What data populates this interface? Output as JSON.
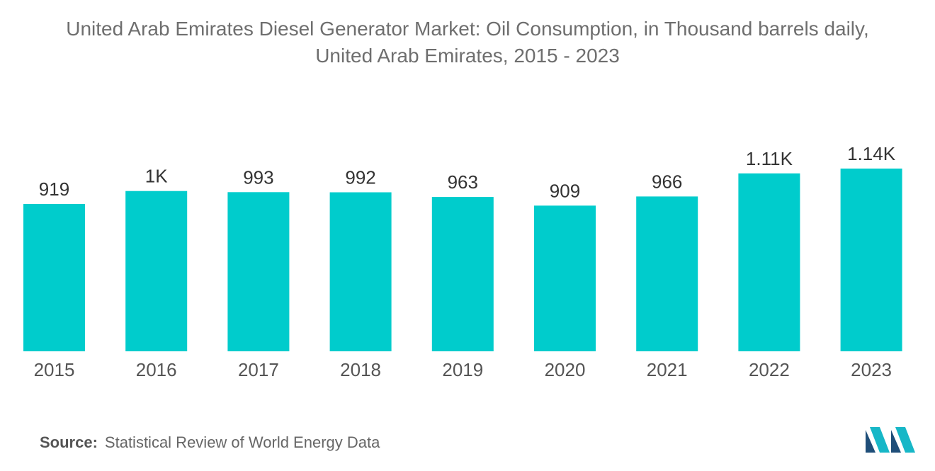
{
  "title": {
    "line1": "United Arab Emirates Diesel Generator Market: Oil Consumption, in Thousand barrels daily,",
    "line2": "United Arab Emirates, 2015 - 2023"
  },
  "chart_data": {
    "type": "bar",
    "title": "United Arab Emirates Diesel Generator Market: Oil Consumption, in Thousand barrels daily, United Arab Emirates, 2015 - 2023",
    "categories": [
      "2015",
      "2016",
      "2017",
      "2018",
      "2019",
      "2020",
      "2021",
      "2022",
      "2023"
    ],
    "values": [
      919,
      1000,
      993,
      992,
      963,
      909,
      966,
      1110,
      1140
    ],
    "data_labels": [
      "919",
      "1K",
      "993",
      "992",
      "963",
      "909",
      "966",
      "1.11K",
      "1.14K"
    ],
    "xlabel": "",
    "ylabel": "",
    "ylim": [
      0,
      1140
    ],
    "grid": false,
    "color": "#00cccc"
  },
  "source": {
    "label": "Source:",
    "text": "Statistical Review of World Energy Data"
  },
  "logo": {
    "icon": "mordor-intelligence-logo-icon",
    "colors": [
      "#1f4e79",
      "#17b7c7"
    ]
  }
}
